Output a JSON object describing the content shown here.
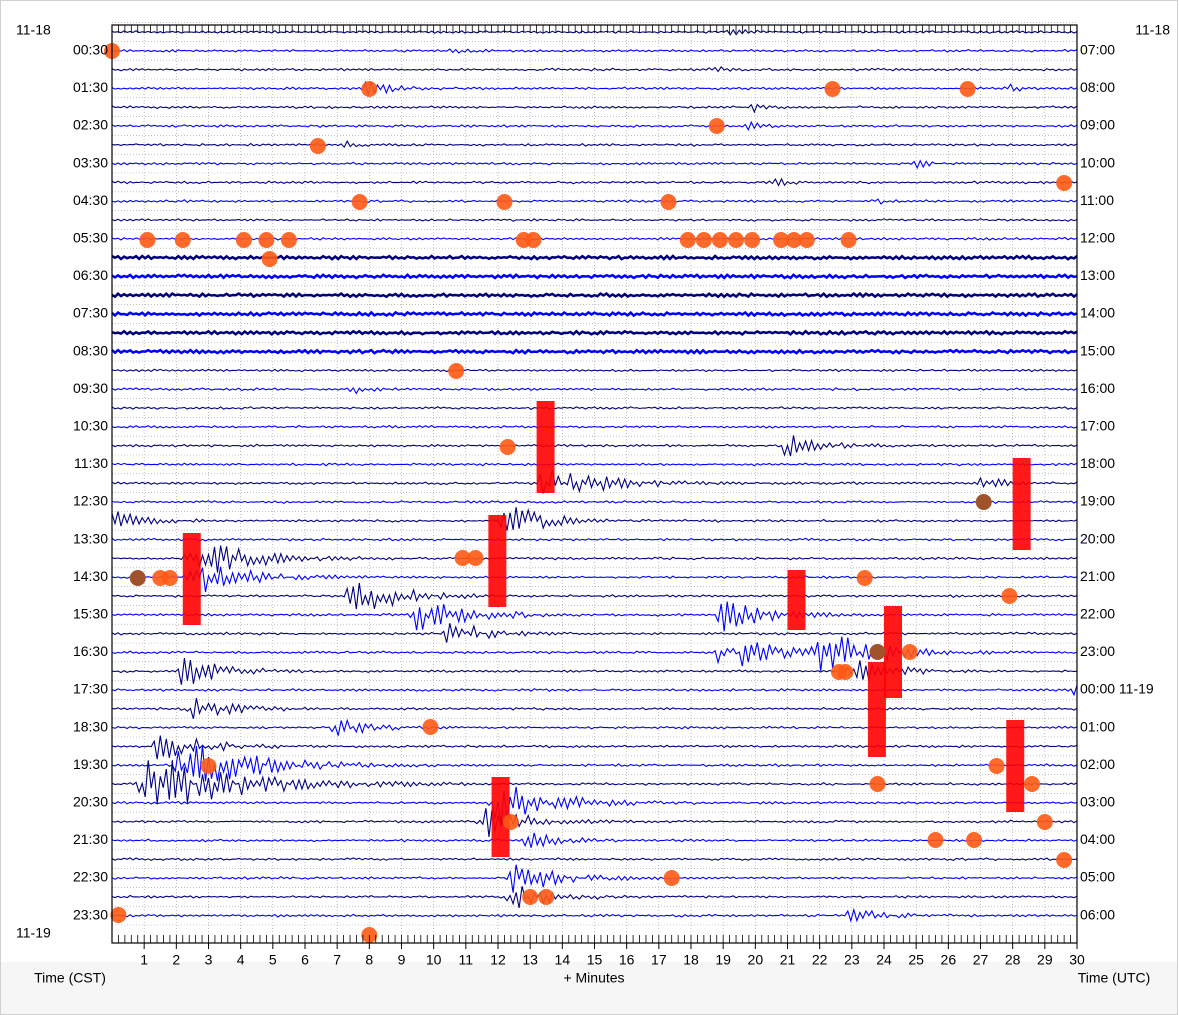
{
  "header": {
    "date_left_top": "11-18",
    "date_right_top": "11-18",
    "date_left_bottom": "11-19"
  },
  "left_times": [
    "00:30",
    "01:30",
    "02:30",
    "03:30",
    "04:30",
    "05:30",
    "06:30",
    "07:30",
    "08:30",
    "09:30",
    "10:30",
    "11:30",
    "12:30",
    "13:30",
    "14:30",
    "15:30",
    "16:30",
    "17:30",
    "18:30",
    "19:30",
    "20:30",
    "21:30",
    "22:30",
    "23:30"
  ],
  "right_times": [
    "07:00",
    "08:00",
    "09:00",
    "10:00",
    "11:00",
    "12:00",
    "13:00",
    "14:00",
    "15:00",
    "16:00",
    "17:00",
    "18:00",
    "19:00",
    "20:00",
    "21:00",
    "22:00",
    "23:00",
    "00:00 11-19",
    "01:00",
    "02:00",
    "03:00",
    "04:00",
    "05:00",
    "06:00"
  ],
  "x_axis": {
    "xlim": [
      0,
      30
    ],
    "ticks": [
      1,
      2,
      3,
      4,
      5,
      6,
      7,
      8,
      9,
      10,
      11,
      12,
      13,
      14,
      15,
      16,
      17,
      18,
      19,
      20,
      21,
      22,
      23,
      24,
      25,
      26,
      27,
      28,
      29,
      30
    ],
    "label": "+ Minutes"
  },
  "left_axis_label": "Time (CST)",
  "right_axis_label": "Time (UTC)"
}
